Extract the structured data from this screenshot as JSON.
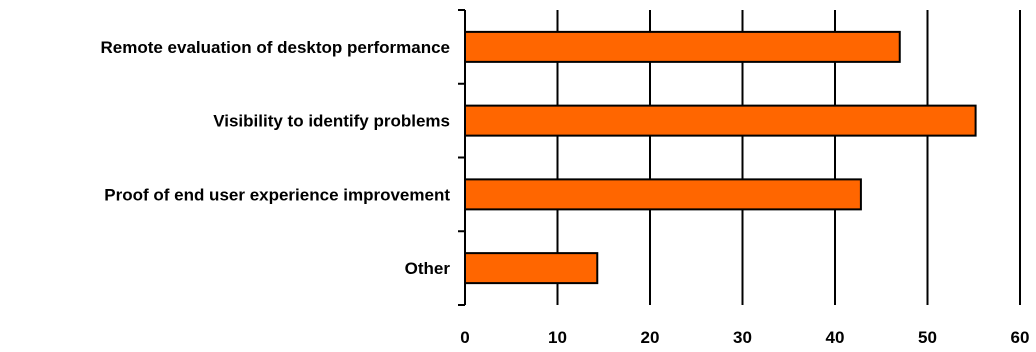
{
  "chart_data": {
    "type": "bar",
    "orientation": "horizontal",
    "categories": [
      "Remote evaluation of desktop performance",
      "Visibility to identify problems",
      "Proof of end user experience improvement",
      "Other"
    ],
    "values": [
      47,
      55.2,
      42.8,
      14.3
    ],
    "xlim": [
      0,
      60
    ],
    "xticks": [
      "0",
      "10",
      "20",
      "30",
      "40",
      "50",
      "60"
    ],
    "title": "",
    "xlabel": "",
    "ylabel": "",
    "grid": "vertical",
    "legend": "none",
    "colors": {
      "bar_fill": "#FF6600",
      "bar_stroke": "#000000",
      "grid": "#000000",
      "text": "#000000"
    }
  }
}
